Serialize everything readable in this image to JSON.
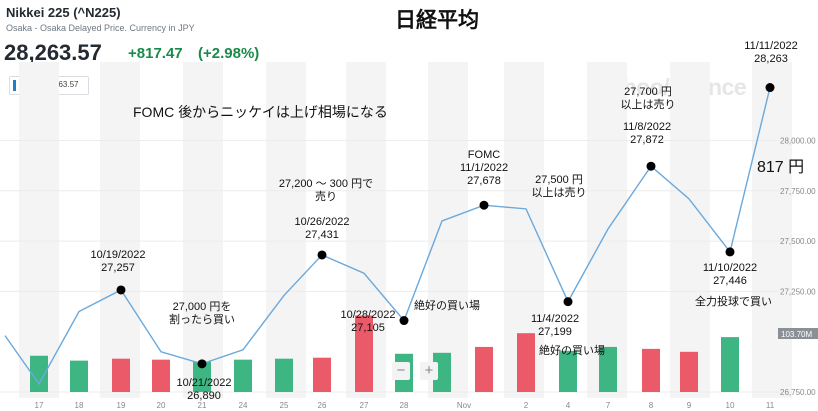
{
  "header": {
    "name": "Nikkei 225 (^N225)",
    "subtitle": "Osaka - Osaka Delayed Price. Currency in JPY",
    "price": "28,263.57",
    "change": "+817.47",
    "change_pct": "(+2.98%)"
  },
  "title": "日経平均",
  "legend": {
    "label": "^N225 28263.57"
  },
  "watermark": "yahoo/finance",
  "zoom": {
    "minus": "−",
    "plus": "+"
  },
  "colors": {
    "line": "#6aa9dc",
    "up": "#3db684",
    "down": "#ea5a68",
    "price_tag": "#8a9096",
    "positive": "#1a8a4a"
  },
  "chart_data": {
    "type": "line",
    "x_labels": [
      "17",
      "18",
      "19",
      "20",
      "21",
      "24",
      "25",
      "26",
      "27",
      "28",
      "Nov",
      "2",
      "4",
      "7",
      "8",
      "9",
      "10",
      "11"
    ],
    "series": [
      {
        "values": [
          27030,
          26790,
          27150,
          27257,
          26950,
          26890,
          26960,
          27230,
          27431,
          27340,
          27105,
          27600,
          27678,
          27660,
          27199,
          27560,
          27872,
          27710,
          27446,
          28263
        ]
      }
    ],
    "volume": [
      {
        "dir": "down",
        "value": 0.36
      },
      {
        "dir": "up",
        "value": 0.37
      },
      {
        "dir": "up",
        "value": 0.32
      },
      {
        "dir": "down",
        "value": 0.34
      },
      {
        "dir": "down",
        "value": 0.33
      },
      {
        "dir": "up",
        "value": 0.31
      },
      {
        "dir": "up",
        "value": 0.33
      },
      {
        "dir": "up",
        "value": 0.34
      },
      {
        "dir": "down",
        "value": 0.35
      },
      {
        "dir": "down",
        "value": 0.78
      },
      {
        "dir": "up",
        "value": 0.39
      },
      {
        "dir": "up",
        "value": 0.4
      },
      {
        "dir": "down",
        "value": 0.46
      },
      {
        "dir": "down",
        "value": 0.6
      },
      {
        "dir": "up",
        "value": 0.42
      },
      {
        "dir": "up",
        "value": 0.46
      },
      {
        "dir": "down",
        "value": 0.44
      },
      {
        "dir": "down",
        "value": 0.41
      },
      {
        "dir": "up",
        "value": 0.56
      }
    ],
    "y_ticks": [
      "28,000.00",
      "27,750.00",
      "27,500.00",
      "27,250.00",
      "26,750.00"
    ],
    "price_tag": "103.70M",
    "ylim": [
      26750,
      28350
    ],
    "annotations": {
      "header_note": "FOMC 後からニッケイは上げ相場になる",
      "oct19": [
        "10/19/2022",
        "27,257"
      ],
      "oct21": [
        "10/21/2022",
        "26,890"
      ],
      "buy_27000": [
        "27,000 円を",
        "割ったら買い"
      ],
      "sell_27200": [
        "27,200 ～ 300 円で",
        "売り"
      ],
      "oct26": [
        "10/26/2022",
        "27,431"
      ],
      "oct28": [
        "10/28/2022",
        "27,105"
      ],
      "best_buy_1": "絶好の買い場",
      "fomc": [
        "FOMC",
        "11/1/2022",
        "27,678"
      ],
      "sell_27500": [
        "27,500 円",
        "以上は売り"
      ],
      "nov4": [
        "11/4/2022",
        "27,199"
      ],
      "best_buy_2": "絶好の買い場",
      "sell_27700": [
        "27,700 円",
        "以上は売り"
      ],
      "nov8": [
        "11/8/2022",
        "27,872"
      ],
      "gain": "817 円",
      "nov10": [
        "11/10/2022",
        "27,446"
      ],
      "all_in_buy": "全力投球で買い",
      "nov11": [
        "11/11/2022",
        "28,263"
      ]
    }
  }
}
